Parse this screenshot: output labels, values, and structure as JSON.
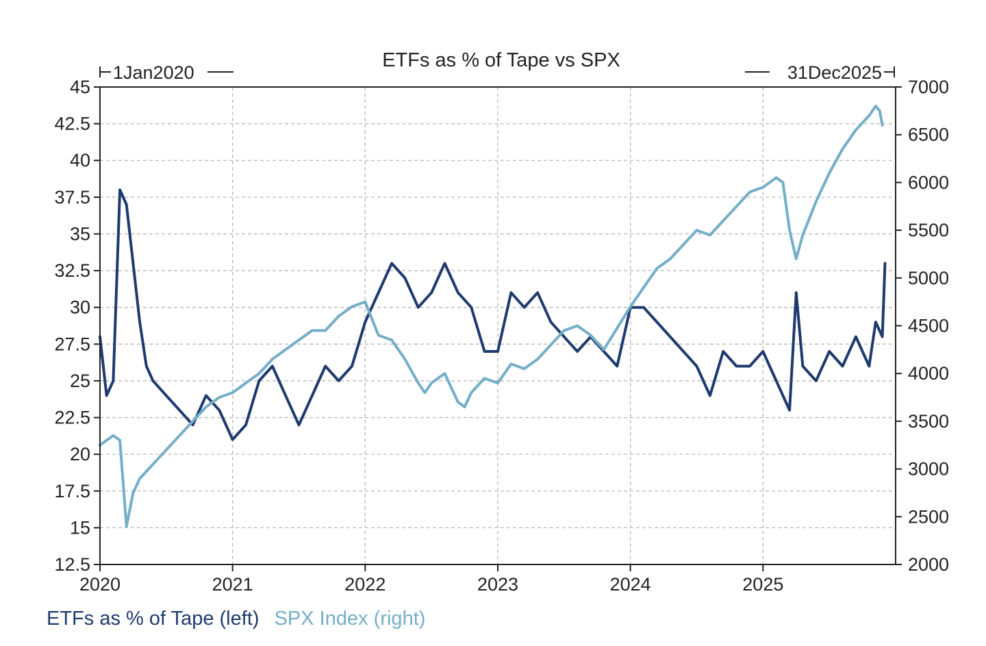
{
  "chart_data": {
    "type": "line",
    "title": "ETFs as % of Tape vs SPX",
    "date_range": {
      "start_label": "1Jan2020",
      "end_label": "31Dec2025"
    },
    "x_axis": {
      "tick_labels": [
        "2020",
        "2021",
        "2022",
        "2023",
        "2024",
        "2025"
      ],
      "xlim": [
        2020.0,
        2026.0
      ]
    },
    "left_axis": {
      "tick_labels": [
        "45",
        "42.5",
        "40",
        "37.5",
        "35",
        "32.5",
        "30",
        "27.5",
        "25",
        "22.5",
        "20",
        "17.5",
        "15",
        "12.5"
      ],
      "ylim": [
        12.5,
        45
      ]
    },
    "right_axis": {
      "tick_labels": [
        "7000",
        "6500",
        "6000",
        "5500",
        "5000",
        "4500",
        "4000",
        "3500",
        "3000",
        "2500",
        "2000"
      ],
      "ylim": [
        2000,
        7000
      ]
    },
    "grid": true,
    "legend": {
      "placement": "bottom-left"
    },
    "series": [
      {
        "name": "ETFs as % of Tape (left)",
        "axis": "left",
        "color": "#1f3a6e",
        "x": [
          2020.0,
          2020.05,
          2020.1,
          2020.15,
          2020.2,
          2020.25,
          2020.3,
          2020.35,
          2020.4,
          2020.5,
          2020.6,
          2020.7,
          2020.8,
          2020.9,
          2021.0,
          2021.1,
          2021.2,
          2021.3,
          2021.4,
          2021.5,
          2021.6,
          2021.7,
          2021.8,
          2021.9,
          2022.0,
          2022.1,
          2022.2,
          2022.3,
          2022.4,
          2022.5,
          2022.6,
          2022.7,
          2022.8,
          2022.9,
          2023.0,
          2023.1,
          2023.2,
          2023.3,
          2023.4,
          2023.5,
          2023.6,
          2023.7,
          2023.8,
          2023.9,
          2024.0,
          2024.1,
          2024.2,
          2024.3,
          2024.4,
          2024.5,
          2024.6,
          2024.7,
          2024.8,
          2024.9,
          2025.0,
          2025.1,
          2025.2,
          2025.25,
          2025.3,
          2025.4,
          2025.5,
          2025.6,
          2025.7,
          2025.75,
          2025.8,
          2025.85,
          2025.9,
          2025.92
        ],
        "values": [
          28,
          24,
          25,
          38,
          37,
          33,
          29,
          26,
          25,
          24,
          23,
          22,
          24,
          23,
          21,
          22,
          25,
          26,
          24,
          22,
          24,
          26,
          25,
          26,
          29,
          31,
          33,
          32,
          30,
          31,
          33,
          31,
          30,
          27,
          27,
          31,
          30,
          31,
          29,
          28,
          27,
          28,
          27,
          26,
          30,
          30,
          29,
          28,
          27,
          26,
          24,
          27,
          26,
          26,
          27,
          25,
          23,
          31,
          26,
          25,
          27,
          26,
          28,
          27,
          26,
          29,
          28,
          33
        ]
      },
      {
        "name": "SPX Index (right)",
        "axis": "right",
        "color": "#74aec8",
        "x": [
          2020.0,
          2020.1,
          2020.15,
          2020.2,
          2020.25,
          2020.3,
          2020.4,
          2020.5,
          2020.6,
          2020.7,
          2020.8,
          2020.9,
          2021.0,
          2021.1,
          2021.2,
          2021.3,
          2021.4,
          2021.5,
          2021.6,
          2021.7,
          2021.8,
          2021.9,
          2022.0,
          2022.1,
          2022.2,
          2022.3,
          2022.4,
          2022.45,
          2022.5,
          2022.6,
          2022.7,
          2022.75,
          2022.8,
          2022.9,
          2023.0,
          2023.1,
          2023.2,
          2023.3,
          2023.4,
          2023.5,
          2023.6,
          2023.7,
          2023.8,
          2024.0,
          2024.1,
          2024.2,
          2024.3,
          2024.4,
          2024.5,
          2024.6,
          2024.7,
          2024.8,
          2024.9,
          2025.0,
          2025.1,
          2025.15,
          2025.2,
          2025.25,
          2025.3,
          2025.4,
          2025.5,
          2025.6,
          2025.7,
          2025.8,
          2025.85,
          2025.88,
          2025.9
        ],
        "values": [
          3250,
          3350,
          3300,
          2400,
          2750,
          2900,
          3050,
          3200,
          3350,
          3500,
          3650,
          3750,
          3800,
          3900,
          4000,
          4150,
          4250,
          4350,
          4450,
          4450,
          4600,
          4700,
          4750,
          4400,
          4350,
          4150,
          3900,
          3800,
          3900,
          4000,
          3700,
          3650,
          3800,
          3950,
          3900,
          4100,
          4050,
          4150,
          4300,
          4450,
          4500,
          4400,
          4250,
          4700,
          4900,
          5100,
          5200,
          5350,
          5500,
          5450,
          5600,
          5750,
          5900,
          5950,
          6050,
          6000,
          5500,
          5200,
          5450,
          5800,
          6100,
          6350,
          6550,
          6700,
          6800,
          6750,
          6600
        ]
      }
    ]
  }
}
